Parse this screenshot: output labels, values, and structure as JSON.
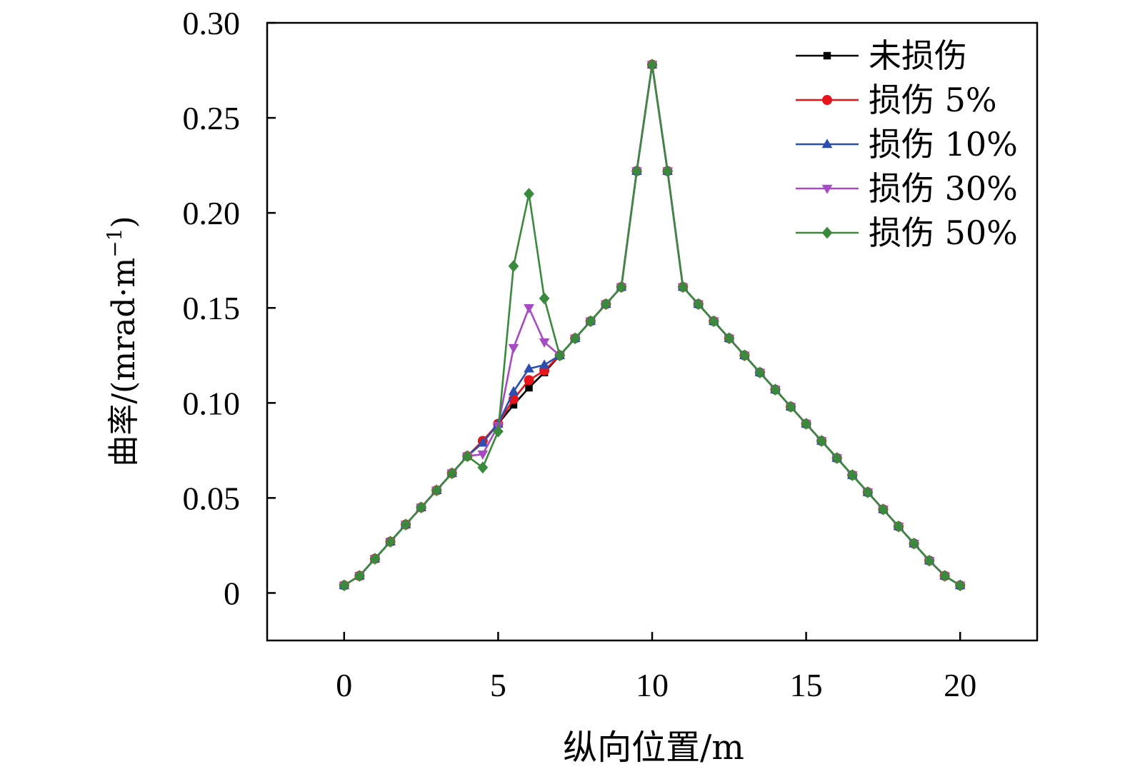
{
  "chart_data": {
    "type": "line",
    "xlabel": "纵向位置/m",
    "ylabel_main": "曲率/(mrad·m",
    "ylabel_sup": "−1",
    "ylabel_close": ")",
    "xlim": [
      -2.5,
      22.5
    ],
    "ylim": [
      -0.025,
      0.3
    ],
    "x_ticks": [
      0,
      5,
      10,
      15,
      20
    ],
    "x_tick_labels": [
      "0",
      "5",
      "10",
      "15",
      "20"
    ],
    "y_ticks": [
      0,
      0.05,
      0.1,
      0.15,
      0.2,
      0.25,
      0.3
    ],
    "y_tick_labels": [
      "0",
      "0.05",
      "0.10",
      "0.15",
      "0.20",
      "0.25",
      "0.30"
    ],
    "grid": false,
    "legend_position": "top-right",
    "x": [
      0,
      0.5,
      1,
      1.5,
      2,
      2.5,
      3,
      3.5,
      4,
      4.5,
      5,
      5.5,
      6,
      6.5,
      7,
      7.5,
      8,
      8.5,
      9,
      9.5,
      10,
      10.5,
      11,
      11.5,
      12,
      12.5,
      13,
      13.5,
      14,
      14.5,
      15,
      15.5,
      16,
      16.5,
      17,
      17.5,
      18,
      18.5,
      19,
      19.5,
      20
    ],
    "series": [
      {
        "name": "未损伤",
        "color": "#000000",
        "marker": "square",
        "values": [
          0.004,
          0.009,
          0.018,
          0.027,
          0.036,
          0.045,
          0.054,
          0.063,
          0.072,
          0.08,
          0.089,
          0.099,
          0.108,
          0.116,
          0.125,
          0.134,
          0.143,
          0.152,
          0.161,
          0.222,
          0.278,
          0.222,
          0.161,
          0.152,
          0.143,
          0.134,
          0.125,
          0.116,
          0.107,
          0.098,
          0.089,
          0.08,
          0.071,
          0.062,
          0.053,
          0.044,
          0.035,
          0.026,
          0.017,
          0.009,
          0.004
        ]
      },
      {
        "name": "损伤 5%",
        "color": "#e8141c",
        "marker": "circle",
        "values": [
          0.004,
          0.009,
          0.018,
          0.027,
          0.036,
          0.045,
          0.054,
          0.063,
          0.072,
          0.08,
          0.089,
          0.102,
          0.112,
          0.117,
          0.125,
          0.134,
          0.143,
          0.152,
          0.161,
          0.222,
          0.278,
          0.222,
          0.161,
          0.152,
          0.143,
          0.134,
          0.125,
          0.116,
          0.107,
          0.098,
          0.089,
          0.08,
          0.071,
          0.062,
          0.053,
          0.044,
          0.035,
          0.026,
          0.017,
          0.009,
          0.004
        ]
      },
      {
        "name": "损伤 10%",
        "color": "#2b4fae",
        "marker": "triangle-up",
        "values": [
          0.004,
          0.009,
          0.018,
          0.027,
          0.036,
          0.045,
          0.054,
          0.063,
          0.072,
          0.079,
          0.089,
          0.106,
          0.118,
          0.12,
          0.125,
          0.134,
          0.143,
          0.152,
          0.161,
          0.222,
          0.278,
          0.222,
          0.161,
          0.152,
          0.143,
          0.134,
          0.125,
          0.116,
          0.107,
          0.098,
          0.089,
          0.08,
          0.071,
          0.062,
          0.053,
          0.044,
          0.035,
          0.026,
          0.017,
          0.009,
          0.004
        ]
      },
      {
        "name": "损伤 30%",
        "color": "#a64bc4",
        "marker": "triangle-down",
        "values": [
          0.004,
          0.009,
          0.018,
          0.027,
          0.036,
          0.045,
          0.054,
          0.063,
          0.072,
          0.073,
          0.088,
          0.129,
          0.15,
          0.132,
          0.125,
          0.134,
          0.143,
          0.152,
          0.161,
          0.222,
          0.278,
          0.222,
          0.161,
          0.152,
          0.143,
          0.134,
          0.125,
          0.116,
          0.107,
          0.098,
          0.089,
          0.08,
          0.071,
          0.062,
          0.053,
          0.044,
          0.035,
          0.026,
          0.017,
          0.009,
          0.004
        ]
      },
      {
        "name": "损伤 50%",
        "color": "#3a8a3d",
        "marker": "diamond",
        "values": [
          0.004,
          0.009,
          0.018,
          0.027,
          0.036,
          0.045,
          0.054,
          0.063,
          0.072,
          0.066,
          0.085,
          0.172,
          0.21,
          0.155,
          0.125,
          0.134,
          0.143,
          0.152,
          0.161,
          0.222,
          0.278,
          0.222,
          0.161,
          0.152,
          0.143,
          0.134,
          0.125,
          0.116,
          0.107,
          0.098,
          0.089,
          0.08,
          0.071,
          0.062,
          0.053,
          0.044,
          0.035,
          0.026,
          0.017,
          0.009,
          0.004
        ]
      }
    ]
  }
}
